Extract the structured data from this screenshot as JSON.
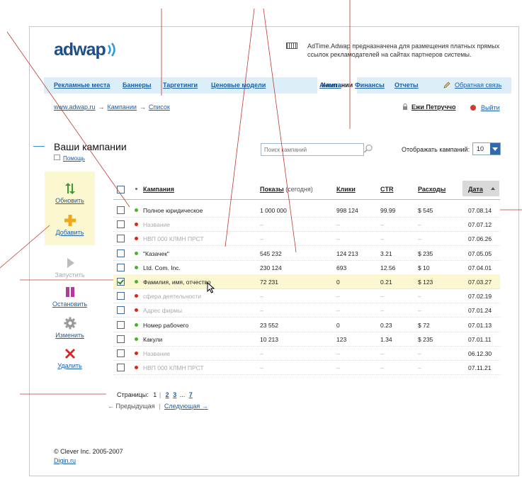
{
  "header": {
    "logo_text": "adwap",
    "description": "AdTime.Adwap предназначена для размещения платных прямых ссылок рекламодателей на сайтах партнеров системы."
  },
  "nav": {
    "items": [
      "Рекламные места",
      "Баннеры",
      "Таргетинги",
      "Ценовые модели",
      "Кампании",
      "Анкета",
      "Финансы",
      "Отчеты"
    ],
    "active": "Кампании",
    "feedback": "Обратная связь"
  },
  "breadcrumb": [
    "www.adwap.ru",
    "Кампании",
    "Список"
  ],
  "user": {
    "name": "Ежи Петруччо",
    "logout": "Выйти"
  },
  "page": {
    "title": "Ваши кампании",
    "help": "Помощь",
    "search_placeholder": "Поиск кампаний",
    "per_page_label": "Отображать кампаний:",
    "per_page_value": "10"
  },
  "actions": [
    {
      "label": "Обновить",
      "enabled": true
    },
    {
      "label": "Добавить",
      "enabled": true
    },
    {
      "label": "Запустить",
      "enabled": false
    },
    {
      "label": "Остановить",
      "enabled": true
    },
    {
      "label": "Изменить",
      "enabled": true
    },
    {
      "label": "Удалить",
      "enabled": true
    }
  ],
  "table": {
    "headers": {
      "campaign": "Кампания",
      "shows": "Показы",
      "shows_sub": "(сегодня)",
      "clicks": "Клики",
      "ctr": "CTR",
      "cost": "Расходы",
      "date": "Дата"
    },
    "rows": [
      {
        "name": "Полное юридическое",
        "shows": "1 000 000",
        "clicks": "998 124",
        "ctr": "99.99",
        "cost": "$ 545",
        "date": "07.08.14",
        "status": "active",
        "checked": false
      },
      {
        "name": "Название",
        "shows": "–",
        "clicks": "–",
        "ctr": "–",
        "cost": "–",
        "date": "07.07.12",
        "status": "stopped",
        "checked": false
      },
      {
        "name": "НВП 000 КЛМН ПРСТ",
        "shows": "–",
        "clicks": "–",
        "ctr": "–",
        "cost": "–",
        "date": "07.06.26",
        "status": "stopped",
        "checked": false
      },
      {
        "name": "\"Казачек\"",
        "shows": "545 232",
        "clicks": "124 213",
        "ctr": "3.21",
        "cost": "$ 235",
        "date": "07.05.05",
        "status": "active",
        "checked": false
      },
      {
        "name": "Ltd. Com. Inc.",
        "shows": "230 124",
        "clicks": "693",
        "ctr": "12.56",
        "cost": "$ 10",
        "date": "07.04.01",
        "status": "active",
        "checked": false
      },
      {
        "name": "Фамилия, имя, отчество",
        "shows": "72 231",
        "clicks": "0",
        "ctr": "0.21",
        "cost": "$ 123",
        "date": "07.03.27",
        "status": "active",
        "checked": true
      },
      {
        "name": "сфера деятельности",
        "shows": "–",
        "clicks": "–",
        "ctr": "–",
        "cost": "–",
        "date": "07.02.19",
        "status": "stopped",
        "checked": false
      },
      {
        "name": "Адрес фирмы",
        "shows": "–",
        "clicks": "–",
        "ctr": "–",
        "cost": "–",
        "date": "07.01.24",
        "status": "stopped",
        "checked": false
      },
      {
        "name": "Номер рабочего",
        "shows": "23 552",
        "clicks": "0",
        "ctr": "0.23",
        "cost": "$ 72",
        "date": "07.01.13",
        "status": "active",
        "checked": false
      },
      {
        "name": "Какули",
        "shows": "10 213",
        "clicks": "123",
        "ctr": "1.34",
        "cost": "$ 235",
        "date": "07.01.11",
        "status": "active",
        "checked": false
      },
      {
        "name": "Название",
        "shows": "–",
        "clicks": "–",
        "ctr": "–",
        "cost": "–",
        "date": "06.12.30",
        "status": "stopped",
        "checked": false
      },
      {
        "name": "НВП 000 КЛМН ПРСТ",
        "shows": "–",
        "clicks": "–",
        "ctr": "–",
        "cost": "–",
        "date": "07.11.21",
        "status": "stopped",
        "checked": false
      }
    ]
  },
  "pagination": {
    "label": "Страницы:",
    "current": "1",
    "pages": [
      "2",
      "3"
    ],
    "ellipsis": "...",
    "last": "7",
    "prev": "← Предыдущая",
    "separator": "|",
    "next": "Следующая →"
  },
  "footer": {
    "copyright": "© Clever Inc. 2005-2007",
    "link": "Digin.ru"
  },
  "colors": {
    "active_dot": "#4caf30",
    "stopped_dot": "#d9261c",
    "nav_bg": "#dceef8",
    "highlight": "#fbf7d0",
    "link": "#1a5fa8"
  }
}
